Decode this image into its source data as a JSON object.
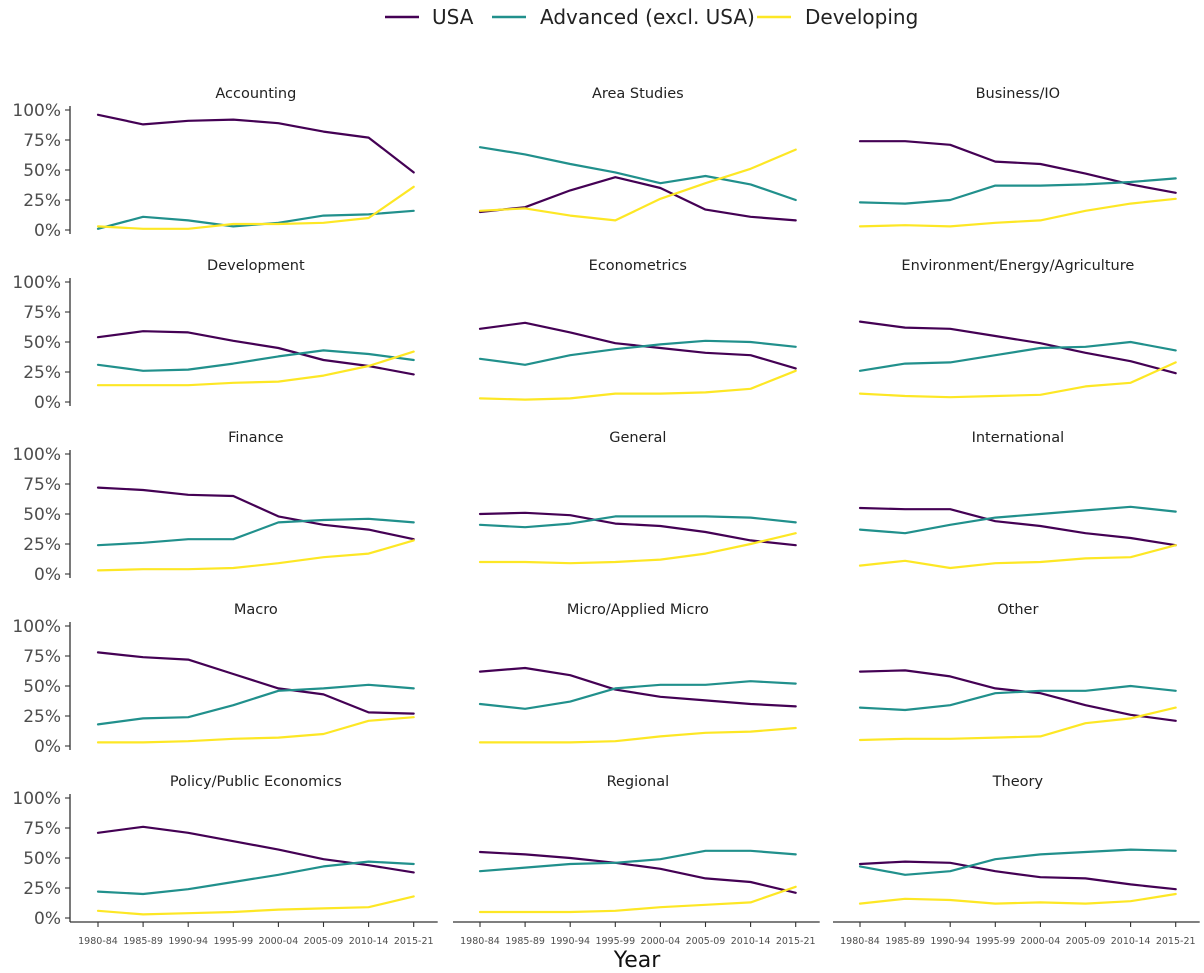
{
  "chart_data": {
    "type": "line",
    "xlabel": "Year",
    "x": [
      "1980-84",
      "1985-89",
      "1990-94",
      "1995-99",
      "2000-04",
      "2005-09",
      "2010-14",
      "2015-21"
    ],
    "ylim": [
      0,
      100
    ],
    "yticks": [
      "0%",
      "25%",
      "50%",
      "75%",
      "100%"
    ],
    "legend_position": "top",
    "grid": false,
    "series_meta": [
      {
        "name": "USA",
        "color": "#440154"
      },
      {
        "name": "Advanced (excl. USA)",
        "color": "#21908C"
      },
      {
        "name": "Developing",
        "color": "#FDE725"
      }
    ],
    "panels": [
      {
        "title": "Accounting",
        "series": [
          {
            "name": "USA",
            "values": [
              96,
              88,
              91,
              92,
              89,
              82,
              77,
              48
            ]
          },
          {
            "name": "Advanced (excl. USA)",
            "values": [
              1,
              11,
              8,
              3,
              6,
              12,
              13,
              16
            ]
          },
          {
            "name": "Developing",
            "values": [
              3,
              1,
              1,
              5,
              5,
              6,
              10,
              36
            ]
          }
        ]
      },
      {
        "title": "Area Studies",
        "series": [
          {
            "name": "USA",
            "values": [
              15,
              19,
              33,
              44,
              35,
              17,
              11,
              8
            ]
          },
          {
            "name": "Advanced (excl. USA)",
            "values": [
              69,
              63,
              55,
              48,
              39,
              45,
              38,
              25
            ]
          },
          {
            "name": "Developing",
            "values": [
              16,
              18,
              12,
              8,
              26,
              39,
              51,
              67
            ]
          }
        ]
      },
      {
        "title": "Business/IO",
        "series": [
          {
            "name": "USA",
            "values": [
              74,
              74,
              71,
              57,
              55,
              47,
              38,
              31
            ]
          },
          {
            "name": "Advanced (excl. USA)",
            "values": [
              23,
              22,
              25,
              37,
              37,
              38,
              40,
              43
            ]
          },
          {
            "name": "Developing",
            "values": [
              3,
              4,
              3,
              6,
              8,
              16,
              22,
              26
            ]
          }
        ]
      },
      {
        "title": "Development",
        "series": [
          {
            "name": "USA",
            "values": [
              54,
              59,
              58,
              51,
              45,
              35,
              30,
              23
            ]
          },
          {
            "name": "Advanced (excl. USA)",
            "values": [
              31,
              26,
              27,
              32,
              38,
              43,
              40,
              35
            ]
          },
          {
            "name": "Developing",
            "values": [
              14,
              14,
              14,
              16,
              17,
              22,
              30,
              42
            ]
          }
        ]
      },
      {
        "title": "Econometrics",
        "series": [
          {
            "name": "USA",
            "values": [
              61,
              66,
              58,
              49,
              45,
              41,
              39,
              28
            ]
          },
          {
            "name": "Advanced (excl. USA)",
            "values": [
              36,
              31,
              39,
              44,
              48,
              51,
              50,
              46
            ]
          },
          {
            "name": "Developing",
            "values": [
              3,
              2,
              3,
              7,
              7,
              8,
              11,
              26
            ]
          }
        ]
      },
      {
        "title": "Environment/Energy/Agriculture",
        "series": [
          {
            "name": "USA",
            "values": [
              67,
              62,
              61,
              55,
              49,
              41,
              34,
              24
            ]
          },
          {
            "name": "Advanced (excl. USA)",
            "values": [
              26,
              32,
              33,
              39,
              45,
              46,
              50,
              43
            ]
          },
          {
            "name": "Developing",
            "values": [
              7,
              5,
              4,
              5,
              6,
              13,
              16,
              33
            ]
          }
        ]
      },
      {
        "title": "Finance",
        "series": [
          {
            "name": "USA",
            "values": [
              72,
              70,
              66,
              65,
              48,
              41,
              37,
              29
            ]
          },
          {
            "name": "Advanced (excl. USA)",
            "values": [
              24,
              26,
              29,
              29,
              43,
              45,
              46,
              43
            ]
          },
          {
            "name": "Developing",
            "values": [
              3,
              4,
              4,
              5,
              9,
              14,
              17,
              28
            ]
          }
        ]
      },
      {
        "title": "General",
        "series": [
          {
            "name": "USA",
            "values": [
              50,
              51,
              49,
              42,
              40,
              35,
              28,
              24
            ]
          },
          {
            "name": "Advanced (excl. USA)",
            "values": [
              41,
              39,
              42,
              48,
              48,
              48,
              47,
              43
            ]
          },
          {
            "name": "Developing",
            "values": [
              10,
              10,
              9,
              10,
              12,
              17,
              25,
              34
            ]
          }
        ]
      },
      {
        "title": "International",
        "series": [
          {
            "name": "USA",
            "values": [
              55,
              54,
              54,
              44,
              40,
              34,
              30,
              24
            ]
          },
          {
            "name": "Advanced (excl. USA)",
            "values": [
              37,
              34,
              41,
              47,
              50,
              53,
              56,
              52
            ]
          },
          {
            "name": "Developing",
            "values": [
              7,
              11,
              5,
              9,
              10,
              13,
              14,
              24
            ]
          }
        ]
      },
      {
        "title": "Macro",
        "series": [
          {
            "name": "USA",
            "values": [
              78,
              74,
              72,
              60,
              48,
              43,
              28,
              27
            ]
          },
          {
            "name": "Advanced (excl. USA)",
            "values": [
              18,
              23,
              24,
              34,
              46,
              48,
              51,
              48
            ]
          },
          {
            "name": "Developing",
            "values": [
              3,
              3,
              4,
              6,
              7,
              10,
              21,
              24
            ]
          }
        ]
      },
      {
        "title": "Micro/Applied Micro",
        "series": [
          {
            "name": "USA",
            "values": [
              62,
              65,
              59,
              47,
              41,
              38,
              35,
              33
            ]
          },
          {
            "name": "Advanced (excl. USA)",
            "values": [
              35,
              31,
              37,
              48,
              51,
              51,
              54,
              52
            ]
          },
          {
            "name": "Developing",
            "values": [
              3,
              3,
              3,
              4,
              8,
              11,
              12,
              15
            ]
          }
        ]
      },
      {
        "title": "Other",
        "series": [
          {
            "name": "USA",
            "values": [
              62,
              63,
              58,
              48,
              44,
              34,
              26,
              21
            ]
          },
          {
            "name": "Advanced (excl. USA)",
            "values": [
              32,
              30,
              34,
              44,
              46,
              46,
              50,
              46
            ]
          },
          {
            "name": "Developing",
            "values": [
              5,
              6,
              6,
              7,
              8,
              19,
              23,
              32
            ]
          }
        ]
      },
      {
        "title": "Policy/Public Economics",
        "series": [
          {
            "name": "USA",
            "values": [
              71,
              76,
              71,
              64,
              57,
              49,
              44,
              38
            ]
          },
          {
            "name": "Advanced (excl. USA)",
            "values": [
              22,
              20,
              24,
              30,
              36,
              43,
              47,
              45
            ]
          },
          {
            "name": "Developing",
            "values": [
              6,
              3,
              4,
              5,
              7,
              8,
              9,
              18
            ]
          }
        ]
      },
      {
        "title": "Regional",
        "series": [
          {
            "name": "USA",
            "values": [
              55,
              53,
              50,
              46,
              41,
              33,
              30,
              21
            ]
          },
          {
            "name": "Advanced (excl. USA)",
            "values": [
              39,
              42,
              45,
              46,
              49,
              56,
              56,
              53
            ]
          },
          {
            "name": "Developing",
            "values": [
              5,
              5,
              5,
              6,
              9,
              11,
              13,
              26
            ]
          }
        ]
      },
      {
        "title": "Theory",
        "series": [
          {
            "name": "USA",
            "values": [
              45,
              47,
              46,
              39,
              34,
              33,
              28,
              24
            ]
          },
          {
            "name": "Advanced (excl. USA)",
            "values": [
              43,
              36,
              39,
              49,
              53,
              55,
              57,
              56
            ]
          },
          {
            "name": "Developing",
            "values": [
              12,
              16,
              15,
              12,
              13,
              12,
              14,
              20
            ]
          }
        ]
      }
    ]
  }
}
